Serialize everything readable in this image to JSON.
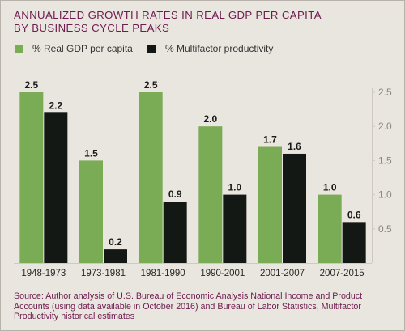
{
  "title_line1": "ANNUALIZED GROWTH RATES IN REAL GDP PER CAPITA",
  "title_line2": "BY BUSINESS CYCLE PEAKS",
  "source": "Source: Author analysis of U.S. Bureau of Economic Analysis National Income and Product Accounts (using data available in October 2016) and Bureau of Labor Statistics, Multifactor Productivity historical estimates",
  "colors": {
    "background": "#e9e5df",
    "title": "#6e1b4f",
    "gdp": "#7aab55",
    "mfp": "#141814",
    "axis": "#cfc9c1",
    "tick_text": "#8a8782"
  },
  "chart_data": {
    "type": "bar",
    "categories": [
      "1948-1973",
      "1973-1981",
      "1981-1990",
      "1990-2001",
      "2001-2007",
      "2007-2015"
    ],
    "series": [
      {
        "name": "% Real GDP per capita",
        "values": [
          2.5,
          1.5,
          2.5,
          2.0,
          1.7,
          1.0
        ],
        "labels": [
          "2.5",
          "1.5",
          "2.5",
          "2.0",
          "1.7",
          "1.0"
        ]
      },
      {
        "name": "% Multifactor productivity",
        "values": [
          2.2,
          0.2,
          0.9,
          1.0,
          1.6,
          0.6
        ],
        "labels": [
          "2.2",
          "0.2",
          "0.9",
          "1.0",
          "1.6",
          "0.6"
        ]
      }
    ],
    "ylim": [
      0,
      2.5
    ],
    "yticks": [
      "0.5",
      "1.0",
      "1.5",
      "2.0",
      "2.5"
    ],
    "y_axis_side": "right",
    "legend_position": "top-left",
    "grid": false
  }
}
